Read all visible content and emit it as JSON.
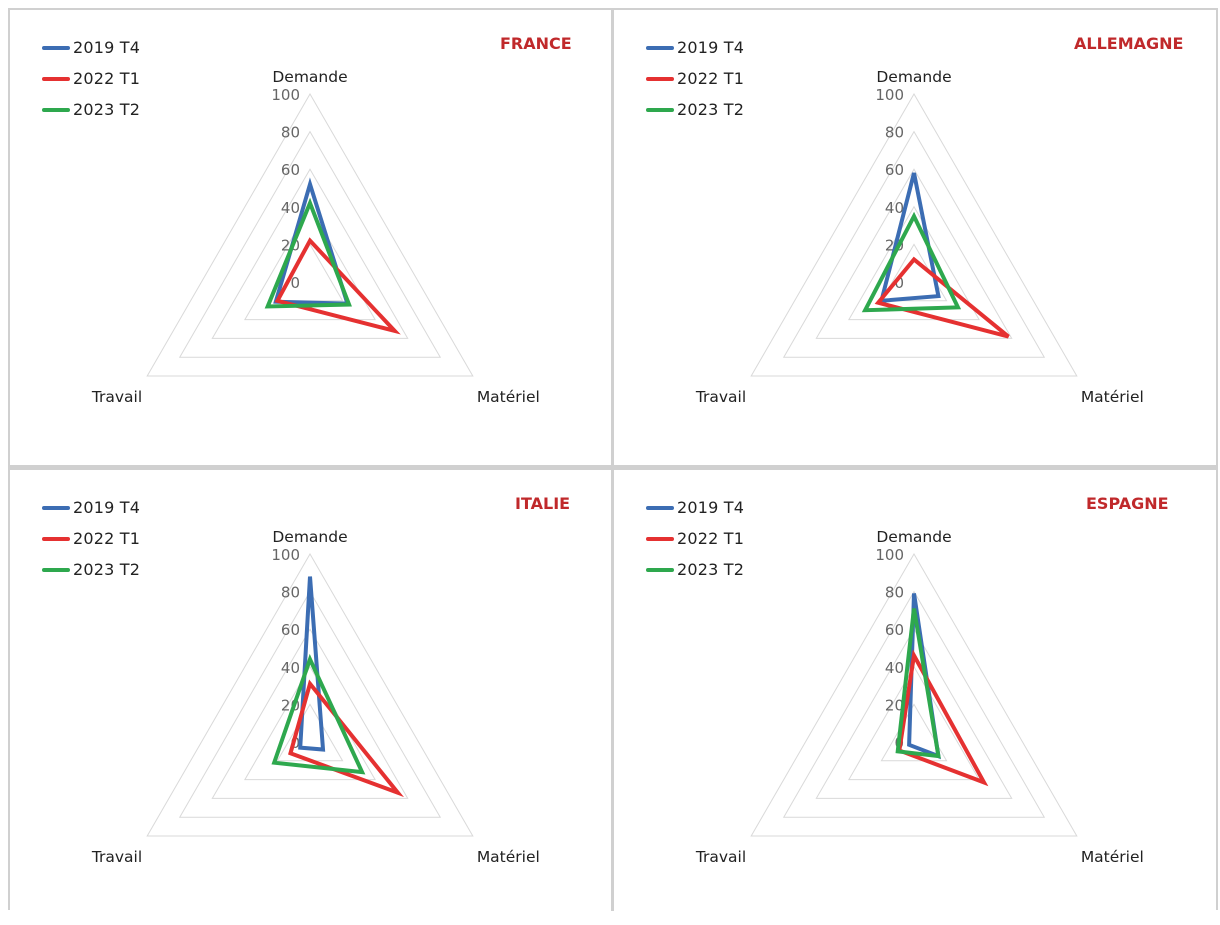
{
  "chart_data": [
    {
      "type": "radar",
      "title": "FRANCE",
      "axes": [
        "Demande",
        "Matériel",
        "Travail"
      ],
      "rlim": [
        0,
        100
      ],
      "ticks": [
        "100",
        "80",
        "60",
        "40",
        "20",
        "0"
      ],
      "legend_position": "top-left",
      "series": [
        {
          "name": "2019 T4",
          "color": "#3c6db3",
          "values": [
            52,
            23,
            21
          ]
        },
        {
          "name": "2022 T1",
          "color": "#e53131",
          "values": [
            22,
            52,
            20
          ]
        },
        {
          "name": "2023 T2",
          "color": "#2ea84e",
          "values": [
            42,
            24,
            26
          ]
        }
      ]
    },
    {
      "type": "radar",
      "title": "ALLEMAGNE",
      "axes": [
        "Demande",
        "Matériel",
        "Travail"
      ],
      "rlim": [
        0,
        100
      ],
      "ticks": [
        "100",
        "80",
        "60",
        "40",
        "20",
        "0"
      ],
      "legend_position": "top-left",
      "series": [
        {
          "name": "2019 T4",
          "color": "#3c6db3",
          "values": [
            58,
            15,
            20
          ]
        },
        {
          "name": "2022 T1",
          "color": "#e53131",
          "values": [
            12,
            58,
            22
          ]
        },
        {
          "name": "2023 T2",
          "color": "#2ea84e",
          "values": [
            35,
            27,
            30
          ]
        }
      ]
    },
    {
      "type": "radar",
      "title": "ITALIE",
      "axes": [
        "Demande",
        "Matériel",
        "Travail"
      ],
      "rlim": [
        0,
        100
      ],
      "ticks": [
        "100",
        "80",
        "60",
        "40",
        "20",
        "0"
      ],
      "legend_position": "top-left",
      "series": [
        {
          "name": "2019 T4",
          "color": "#3c6db3",
          "values": [
            88,
            8,
            6
          ]
        },
        {
          "name": "2022 T1",
          "color": "#e53131",
          "values": [
            31,
            54,
            12
          ]
        },
        {
          "name": "2023 T2",
          "color": "#2ea84e",
          "values": [
            44,
            32,
            22
          ]
        }
      ]
    },
    {
      "type": "radar",
      "title": "ESPAGNE",
      "axes": [
        "Demande",
        "Matériel",
        "Travail"
      ],
      "rlim": [
        0,
        100
      ],
      "ticks": [
        "100",
        "80",
        "60",
        "40",
        "20",
        "0"
      ],
      "legend_position": "top-left",
      "series": [
        {
          "name": "2019 T4",
          "color": "#3c6db3",
          "values": [
            79,
            15,
            3
          ]
        },
        {
          "name": "2022 T1",
          "color": "#e53131",
          "values": [
            46,
            43,
            9
          ]
        },
        {
          "name": "2023 T2",
          "color": "#2ea84e",
          "values": [
            71,
            15,
            10
          ]
        }
      ]
    }
  ]
}
